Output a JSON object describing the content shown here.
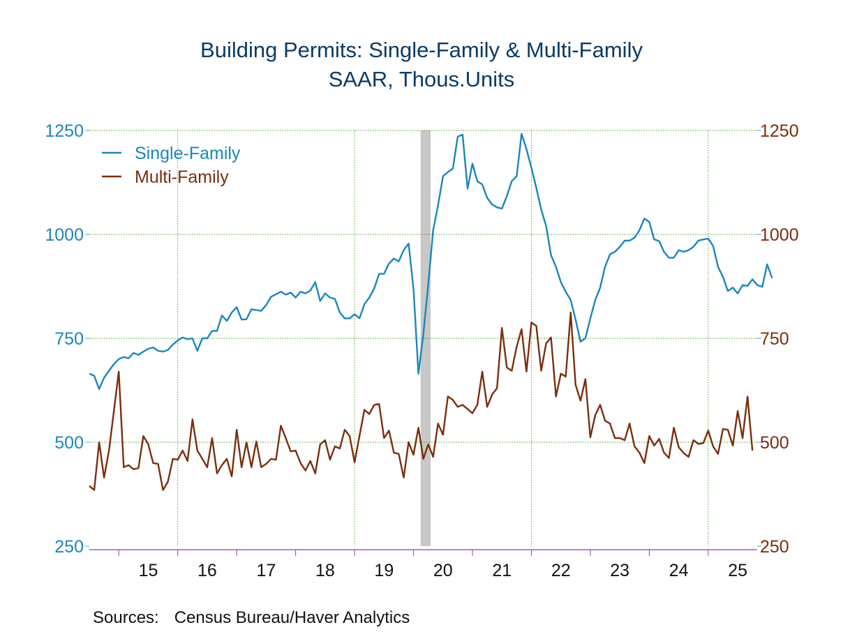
{
  "sources": {
    "label": "Sources:",
    "text": "Census Bureau/Haver Analytics"
  },
  "chart_data": {
    "type": "line",
    "title": "Building Permits: Single-Family & Multi-Family",
    "subtitle": "SAAR, Thous.Units",
    "xlabel": "",
    "ylabel_left": "",
    "ylabel_right": "",
    "ylim": [
      250,
      1250
    ],
    "y_ticks": [
      250,
      500,
      750,
      1000,
      1250
    ],
    "grid": true,
    "legend_position": "top-left",
    "x_start": 2014.5,
    "x_end": 2025.83,
    "x_tick_labels": [
      "15",
      "16",
      "17",
      "18",
      "19",
      "20",
      "21",
      "22",
      "23",
      "24",
      "25"
    ],
    "recession_shading": {
      "start": 2020.12,
      "end": 2020.29,
      "color": "#c8c8c8"
    },
    "series": [
      {
        "name": "Single-Family",
        "color": "#1b86b8",
        "axis": "left",
        "start": 2014.5,
        "step": 0.08333,
        "values": [
          665,
          660,
          628,
          655,
          672,
          688,
          700,
          705,
          702,
          715,
          710,
          718,
          725,
          728,
          720,
          718,
          722,
          735,
          745,
          752,
          748,
          750,
          720,
          750,
          750,
          768,
          768,
          805,
          792,
          812,
          825,
          795,
          796,
          820,
          818,
          816,
          830,
          850,
          856,
          862,
          855,
          860,
          848,
          862,
          858,
          865,
          885,
          840,
          858,
          848,
          845,
          812,
          798,
          798,
          808,
          798,
          832,
          848,
          870,
          905,
          905,
          930,
          942,
          935,
          962,
          978,
          870,
          665,
          760,
          880,
          1010,
          1070,
          1140,
          1150,
          1158,
          1235,
          1240,
          1110,
          1170,
          1128,
          1120,
          1088,
          1072,
          1065,
          1062,
          1092,
          1128,
          1140,
          1242,
          1205,
          1160,
          1112,
          1060,
          1020,
          950,
          922,
          885,
          862,
          842,
          795,
          742,
          750,
          798,
          842,
          872,
          922,
          952,
          958,
          970,
          985,
          985,
          992,
          1010,
          1038,
          1030,
          988,
          984,
          958,
          944,
          944,
          962,
          958,
          962,
          970,
          985,
          988,
          990,
          972,
          922,
          898,
          864,
          872,
          858,
          878,
          876,
          892,
          878,
          874,
          928,
          895
        ]
      },
      {
        "name": "Multi-Family",
        "color": "#7a2e0e",
        "axis": "right",
        "start": 2014.5,
        "step": 0.08333,
        "values": [
          395,
          385,
          500,
          415,
          480,
          575,
          670,
          440,
          445,
          435,
          438,
          515,
          495,
          450,
          448,
          385,
          405,
          460,
          458,
          480,
          455,
          555,
          480,
          460,
          440,
          510,
          425,
          445,
          460,
          418,
          530,
          440,
          500,
          440,
          502,
          440,
          448,
          460,
          458,
          540,
          510,
          478,
          480,
          450,
          432,
          455,
          425,
          495,
          505,
          458,
          490,
          485,
          530,
          515,
          452,
          515,
          578,
          568,
          590,
          592,
          510,
          528,
          475,
          472,
          415,
          500,
          470,
          535,
          460,
          495,
          465,
          545,
          518,
          610,
          602,
          585,
          590,
          580,
          570,
          590,
          670,
          585,
          615,
          630,
          775,
          680,
          672,
          730,
          772,
          670,
          788,
          780,
          672,
          738,
          752,
          610,
          665,
          658,
          812,
          638,
          600,
          652,
          512,
          565,
          590,
          552,
          545,
          510,
          510,
          505,
          545,
          490,
          475,
          450,
          515,
          492,
          508,
          475,
          462,
          535,
          488,
          474,
          465,
          505,
          496,
          498,
          528,
          490,
          472,
          532,
          530,
          492,
          575,
          510,
          610,
          480
        ]
      }
    ]
  }
}
